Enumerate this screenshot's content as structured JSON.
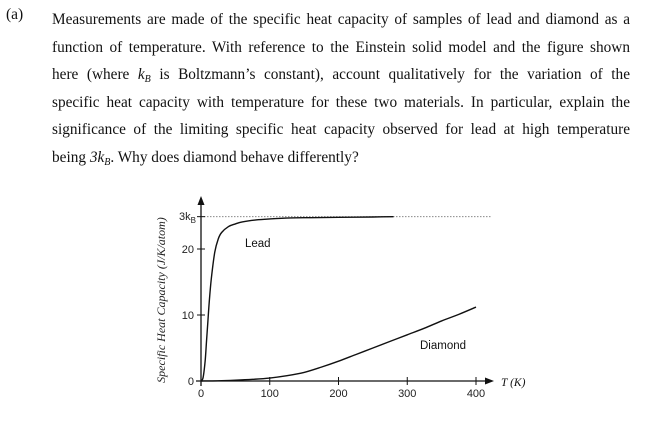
{
  "question": {
    "label": "(a)",
    "lines": [
      "Measurements are made of the specific heat capacity of samples of lead and diamond as a",
      "function of temperature.  With reference to the Einstein solid model and the figure shown",
      "here (where ",
      "is Boltzmann’s constant), account qualitatively for the variation of the",
      "specific heat capacity with temperature for these two materials.  In particular, explain the",
      "significance of the limiting specific heat capacity observed for lead at high temperature",
      "being ",
      ".  Why does diamond behave differently?"
    ],
    "kB_symbol": "k",
    "kB_sub": "B",
    "threekB_prefix": "3k",
    "threekB_sub": "B"
  },
  "chart_data": {
    "type": "line",
    "ylabel": "Specific Heat Capacity (J/K/atom)",
    "xlabel": "T (K)",
    "x_ticks": [
      "0",
      "100",
      "200",
      "300",
      "400"
    ],
    "y_ticks": [
      "0",
      "10",
      "20"
    ],
    "y_top_label_prefix": "3k",
    "y_top_label_sub": "B",
    "xlim": [
      0,
      400
    ],
    "ylim": [
      0,
      25
    ],
    "limit_line": {
      "value": 24.9,
      "style": "dotted",
      "label": "3kB"
    },
    "series": [
      {
        "name": "Lead",
        "x": [
          0,
          3,
          6,
          8,
          10,
          12,
          15,
          20,
          25,
          30,
          40,
          50,
          60,
          80,
          100,
          130,
          160,
          200,
          250,
          280
        ],
        "y": [
          0,
          0.5,
          3,
          6,
          9,
          12,
          15.5,
          19.5,
          21.5,
          22.5,
          23.4,
          23.8,
          24.1,
          24.4,
          24.55,
          24.7,
          24.75,
          24.8,
          24.85,
          24.9
        ]
      },
      {
        "name": "Diamond",
        "x": [
          0,
          25,
          50,
          75,
          100,
          125,
          150,
          175,
          200,
          225,
          250,
          275,
          300,
          325,
          350,
          375,
          400
        ],
        "y": [
          0,
          0.03,
          0.12,
          0.25,
          0.45,
          0.8,
          1.3,
          2.1,
          3.0,
          4.0,
          5.0,
          6.0,
          7.0,
          8.0,
          9.1,
          10.1,
          11.2
        ]
      }
    ]
  }
}
